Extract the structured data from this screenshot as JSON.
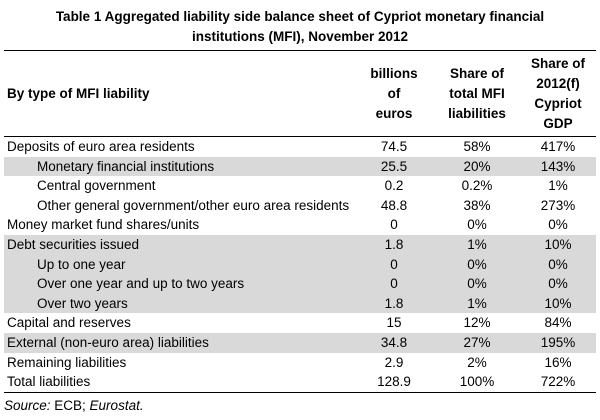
{
  "title": {
    "line1": "Table 1 Aggregated liability side balance sheet of Cypriot monetary financial",
    "line2": "institutions (MFI), November 2012"
  },
  "table": {
    "header": {
      "col0": "By type of MFI liability",
      "col1": "billions\nof\neuros",
      "col2": "Share of\ntotal MFI\nliabilities",
      "col3": "Share of\n2012(f)\nCypriot\nGDP"
    },
    "rows": [
      {
        "label": "Deposits of euro area residents",
        "indent": false,
        "shaded": false,
        "values": [
          "74.5",
          "58%",
          "417%"
        ]
      },
      {
        "label": "Monetary financial institutions",
        "indent": true,
        "shaded": true,
        "values": [
          "25.5",
          "20%",
          "143%"
        ]
      },
      {
        "label": "Central government",
        "indent": true,
        "shaded": false,
        "values": [
          "0.2",
          "0.2%",
          "1%"
        ]
      },
      {
        "label": "Other general government/other euro area residents",
        "indent": true,
        "shaded": false,
        "values": [
          "48.8",
          "38%",
          "273%"
        ]
      },
      {
        "label": "Money market fund shares/units",
        "indent": false,
        "shaded": false,
        "values": [
          "0",
          "0%",
          "0%"
        ]
      },
      {
        "label": "Debt securities issued",
        "indent": false,
        "shaded": true,
        "values": [
          "1.8",
          "1%",
          "10%"
        ]
      },
      {
        "label": "Up to one year",
        "indent": true,
        "shaded": true,
        "values": [
          "0",
          "0%",
          "0%"
        ]
      },
      {
        "label": "Over one year and up to two years",
        "indent": true,
        "shaded": true,
        "values": [
          "0",
          "0%",
          "0%"
        ]
      },
      {
        "label": "Over two years",
        "indent": true,
        "shaded": true,
        "values": [
          "1.8",
          "1%",
          "10%"
        ]
      },
      {
        "label": "Capital and reserves",
        "indent": false,
        "shaded": false,
        "values": [
          "15",
          "12%",
          "84%"
        ]
      },
      {
        "label": "External (non-euro area) liabilities",
        "indent": false,
        "shaded": true,
        "values": [
          "34.8",
          "27%",
          "195%"
        ]
      },
      {
        "label": "Remaining liabilities",
        "indent": false,
        "shaded": false,
        "values": [
          "2.9",
          "2%",
          "16%"
        ]
      },
      {
        "label": "Total liabilities",
        "indent": false,
        "shaded": false,
        "values": [
          "128.9",
          "100%",
          "722%"
        ]
      }
    ]
  },
  "source": {
    "prefix": "Source:",
    "middle": " ECB; ",
    "suffix": "Eurostat."
  },
  "colors": {
    "row_shade": "#d9d9d9",
    "rule": "#000000",
    "text": "#000000",
    "background": "#ffffff"
  }
}
